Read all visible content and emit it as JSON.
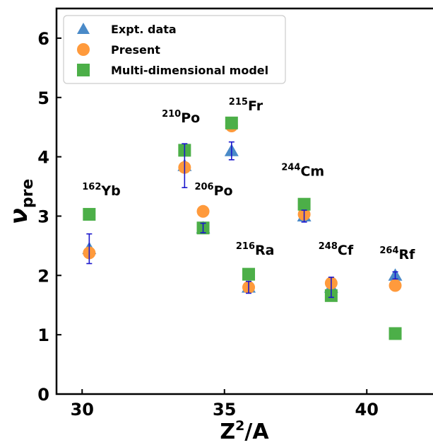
{
  "chart_data": {
    "type": "scatter",
    "xlabel_main": "Z",
    "xlabel_sup": "2",
    "xlabel_rest": "/A",
    "ylabel_main": "ν",
    "ylabel_sub": "pre",
    "xlim": [
      29.1,
      42.5
    ],
    "ylim": [
      0,
      6.5
    ],
    "xticks": [
      30,
      35,
      40
    ],
    "yticks": [
      0,
      1,
      2,
      3,
      4,
      5,
      6
    ],
    "legend_position": "top-left",
    "colors": {
      "expt": "#4a8ac8",
      "present": "#ff9a3c",
      "model": "#4caf48",
      "errorbar": "#1a16cc"
    },
    "series": [
      {
        "name": "Expt. data",
        "marker": "triangle",
        "points": [
          {
            "x": 30.25,
            "y": 2.45,
            "err": 0.25
          },
          {
            "x": 33.6,
            "y": 3.85,
            "err": 0.37
          },
          {
            "x": 34.25,
            "y": 2.8,
            "err": 0.08
          },
          {
            "x": 35.25,
            "y": 4.1,
            "err": 0.15
          },
          {
            "x": 35.85,
            "y": 1.8,
            "err": 0.1
          },
          {
            "x": 37.8,
            "y": 3.0,
            "err": 0.1
          },
          {
            "x": 38.75,
            "y": 1.8,
            "err": 0.17
          },
          {
            "x": 41.0,
            "y": 2.0,
            "err": 0.06
          }
        ]
      },
      {
        "name": "Present",
        "marker": "circle",
        "points": [
          {
            "x": 30.25,
            "y": 2.38
          },
          {
            "x": 33.6,
            "y": 3.82
          },
          {
            "x": 34.25,
            "y": 3.08
          },
          {
            "x": 35.25,
            "y": 4.52
          },
          {
            "x": 35.85,
            "y": 1.8
          },
          {
            "x": 37.8,
            "y": 3.03
          },
          {
            "x": 38.75,
            "y": 1.87
          },
          {
            "x": 41.0,
            "y": 1.83
          }
        ]
      },
      {
        "name": "Multi-dimensional model",
        "marker": "square",
        "points": [
          {
            "x": 30.25,
            "y": 3.03
          },
          {
            "x": 33.6,
            "y": 4.11
          },
          {
            "x": 34.25,
            "y": 2.8
          },
          {
            "x": 35.25,
            "y": 4.57
          },
          {
            "x": 35.85,
            "y": 2.02
          },
          {
            "x": 37.8,
            "y": 3.2
          },
          {
            "x": 38.75,
            "y": 1.66
          },
          {
            "x": 41.0,
            "y": 1.02
          }
        ]
      }
    ],
    "annotations": [
      {
        "mass": "162",
        "element": "Yb",
        "x": 30.0,
        "y": 3.35
      },
      {
        "mass": "210",
        "element": "Po",
        "x": 32.8,
        "y": 4.58
      },
      {
        "mass": "206",
        "element": "Po",
        "x": 33.95,
        "y": 3.35
      },
      {
        "mass": "215",
        "element": "Fr",
        "x": 35.15,
        "y": 4.78
      },
      {
        "mass": "244",
        "element": "Cm",
        "x": 37.0,
        "y": 3.68
      },
      {
        "mass": "216",
        "element": "Ra",
        "x": 35.4,
        "y": 2.35
      },
      {
        "mass": "248",
        "element": "Cf",
        "x": 38.3,
        "y": 2.35
      },
      {
        "mass": "264",
        "element": "Rf",
        "x": 40.45,
        "y": 2.28
      }
    ]
  }
}
